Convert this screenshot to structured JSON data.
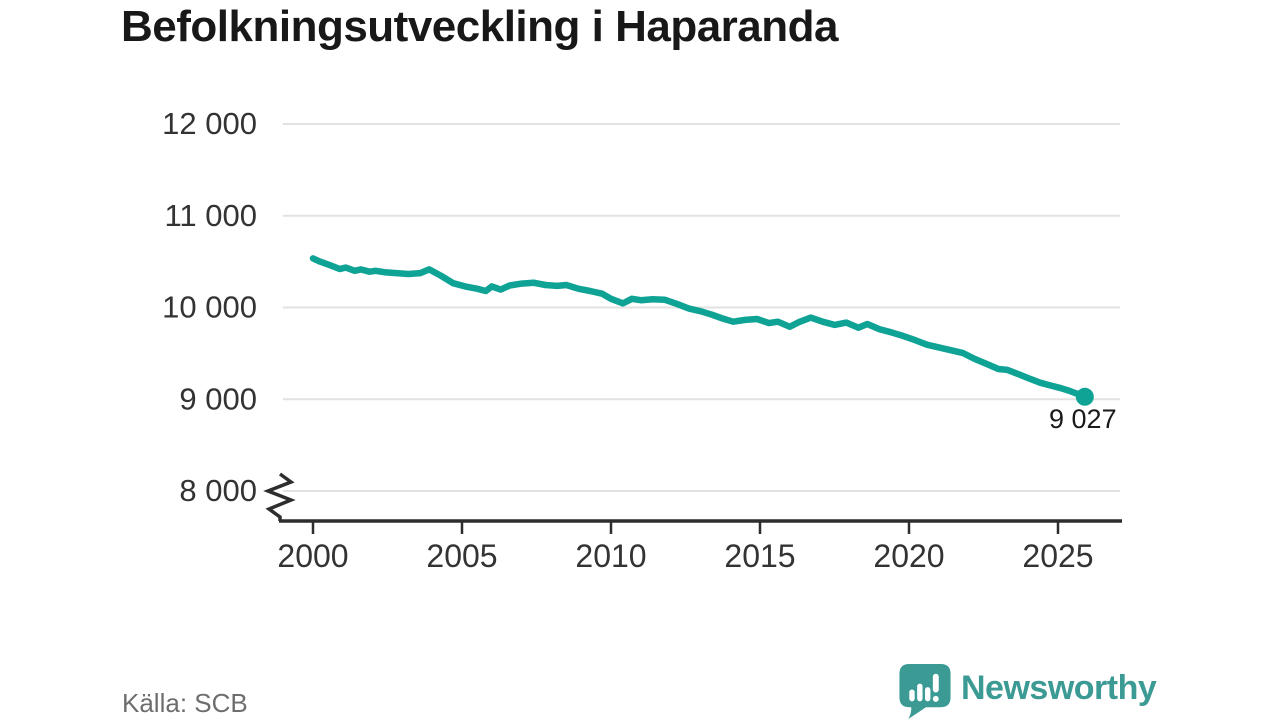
{
  "title": "Befolkningsutveckling i Haparanda",
  "source": "Källa: SCB",
  "branding": {
    "name": "Newsworthy",
    "icon": "speech-bubble-bar-chart-icon",
    "color": "#3b9a93"
  },
  "chart_data": {
    "type": "line",
    "title": "Befolkningsutveckling i Haparanda",
    "xlabel": "",
    "ylabel": "",
    "x_unit": "year",
    "xlim": [
      1999,
      2027.2
    ],
    "ylim": [
      8000,
      12000
    ],
    "y_axis_break_below": 8000,
    "grid": true,
    "legend_position": "none",
    "source_label": "Källa: SCB",
    "colors": {
      "line": "#0fa396",
      "grid": "#e2e2e2",
      "axis": "#2d2d2d",
      "tick_labels": "#333333",
      "end_label_text": "#1a1a1a"
    },
    "xticks": [
      {
        "value": 2000,
        "label": "2000"
      },
      {
        "value": 2005,
        "label": "2005"
      },
      {
        "value": 2010,
        "label": "2010"
      },
      {
        "value": 2015,
        "label": "2015"
      },
      {
        "value": 2020,
        "label": "2020"
      },
      {
        "value": 2025,
        "label": "2025"
      }
    ],
    "yticks": [
      {
        "value": 8000,
        "label": "8 000"
      },
      {
        "value": 9000,
        "label": "9 000"
      },
      {
        "value": 10000,
        "label": "10 000"
      },
      {
        "value": 11000,
        "label": "11 000"
      },
      {
        "value": 12000,
        "label": "12 000"
      }
    ],
    "series": [
      {
        "name": "population",
        "color": "#0fa396",
        "end_label": "9 027",
        "end_value": 9027,
        "points": [
          [
            2000.0,
            10535
          ],
          [
            2000.2,
            10505
          ],
          [
            2000.5,
            10470
          ],
          [
            2000.9,
            10420
          ],
          [
            2001.1,
            10435
          ],
          [
            2001.4,
            10400
          ],
          [
            2001.6,
            10415
          ],
          [
            2001.9,
            10390
          ],
          [
            2002.1,
            10400
          ],
          [
            2002.4,
            10385
          ],
          [
            2002.8,
            10375
          ],
          [
            2003.2,
            10365
          ],
          [
            2003.6,
            10375
          ],
          [
            2003.9,
            10415
          ],
          [
            2004.3,
            10345
          ],
          [
            2004.7,
            10265
          ],
          [
            2005.1,
            10230
          ],
          [
            2005.5,
            10205
          ],
          [
            2005.8,
            10180
          ],
          [
            2006.0,
            10230
          ],
          [
            2006.3,
            10195
          ],
          [
            2006.6,
            10240
          ],
          [
            2007.0,
            10260
          ],
          [
            2007.4,
            10270
          ],
          [
            2007.8,
            10245
          ],
          [
            2008.2,
            10235
          ],
          [
            2008.5,
            10245
          ],
          [
            2008.9,
            10205
          ],
          [
            2009.3,
            10180
          ],
          [
            2009.7,
            10150
          ],
          [
            2010.0,
            10095
          ],
          [
            2010.4,
            10045
          ],
          [
            2010.7,
            10095
          ],
          [
            2011.0,
            10080
          ],
          [
            2011.4,
            10090
          ],
          [
            2011.8,
            10085
          ],
          [
            2012.2,
            10040
          ],
          [
            2012.6,
            9990
          ],
          [
            2013.0,
            9960
          ],
          [
            2013.4,
            9920
          ],
          [
            2013.7,
            9885
          ],
          [
            2014.1,
            9845
          ],
          [
            2014.5,
            9865
          ],
          [
            2014.9,
            9875
          ],
          [
            2015.3,
            9830
          ],
          [
            2015.6,
            9845
          ],
          [
            2016.0,
            9790
          ],
          [
            2016.3,
            9840
          ],
          [
            2016.7,
            9890
          ],
          [
            2017.1,
            9845
          ],
          [
            2017.5,
            9810
          ],
          [
            2017.9,
            9835
          ],
          [
            2018.3,
            9780
          ],
          [
            2018.6,
            9820
          ],
          [
            2019.0,
            9765
          ],
          [
            2019.4,
            9730
          ],
          [
            2019.8,
            9690
          ],
          [
            2020.2,
            9645
          ],
          [
            2020.6,
            9595
          ],
          [
            2021.0,
            9565
          ],
          [
            2021.4,
            9535
          ],
          [
            2021.8,
            9505
          ],
          [
            2022.2,
            9440
          ],
          [
            2022.6,
            9385
          ],
          [
            2023.0,
            9330
          ],
          [
            2023.3,
            9320
          ],
          [
            2023.7,
            9270
          ],
          [
            2024.0,
            9230
          ],
          [
            2024.4,
            9180
          ],
          [
            2024.8,
            9145
          ],
          [
            2025.1,
            9120
          ],
          [
            2025.4,
            9090
          ],
          [
            2025.9,
            9027
          ]
        ]
      }
    ]
  }
}
